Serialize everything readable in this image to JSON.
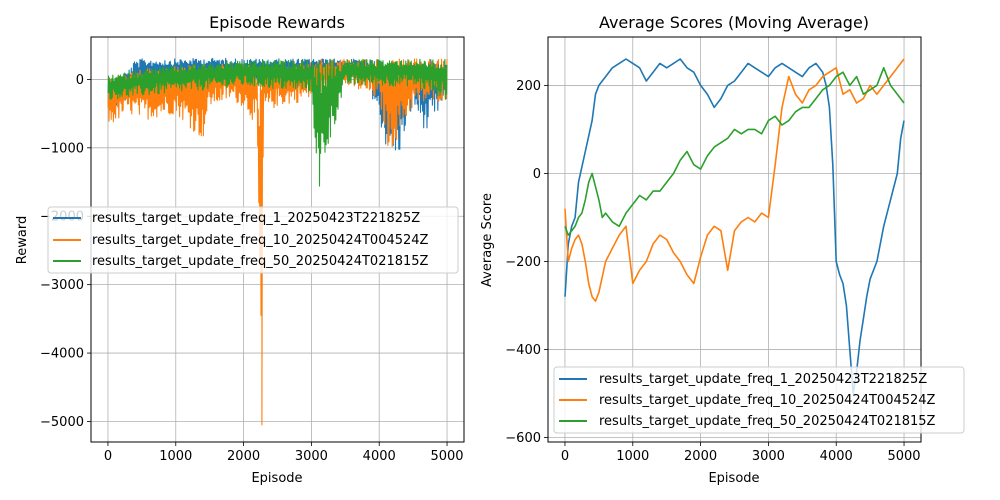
{
  "chart_data": [
    {
      "type": "line",
      "title": "Episode Rewards",
      "xlabel": "Episode",
      "ylabel": "Reward",
      "xlim": [
        -250,
        5250
      ],
      "ylim": [
        -5300,
        620
      ],
      "xticks": [
        0,
        1000,
        2000,
        3000,
        4000,
        5000
      ],
      "yticks": [
        0,
        -1000,
        -2000,
        -3000,
        -4000,
        -5000
      ],
      "xtick_labels": [
        "0",
        "1000",
        "2000",
        "3000",
        "4000",
        "5000"
      ],
      "ytick_labels": [
        "0",
        "−1000",
        "−2000",
        "−3000",
        "−4000",
        "−5000"
      ],
      "grid": true,
      "legend_position": "center-left",
      "series": [
        {
          "name": "results_target_update_freq_1_20250423T221825Z",
          "color": "#1f77b4",
          "x": [
            0,
            300,
            400,
            500,
            1000,
            1500,
            1800,
            2000,
            2500,
            3000,
            3500,
            3800,
            4000,
            4150,
            4300,
            4500,
            4700,
            5000
          ],
          "upper": [
            -100,
            150,
            280,
            300,
            300,
            310,
            310,
            300,
            300,
            300,
            300,
            290,
            280,
            200,
            250,
            280,
            290,
            300
          ],
          "lower": [
            -500,
            -300,
            -200,
            -100,
            -50,
            0,
            -20,
            -30,
            0,
            50,
            80,
            50,
            -600,
            -1200,
            -1100,
            -400,
            -800,
            -300
          ]
        },
        {
          "name": "results_target_update_freq_10_20250424T004524Z",
          "color": "#ff7f0e",
          "x": [
            0,
            300,
            500,
            1000,
            1400,
            1500,
            1800,
            2000,
            2200,
            2250,
            2300,
            2500,
            3000,
            3200,
            3500,
            4000,
            4150,
            4500,
            5000
          ],
          "upper": [
            0,
            100,
            150,
            200,
            220,
            200,
            250,
            230,
            200,
            150,
            200,
            250,
            280,
            300,
            300,
            300,
            300,
            300,
            300
          ],
          "lower": [
            -700,
            -500,
            -600,
            -500,
            -900,
            -400,
            -300,
            -400,
            -700,
            -5050,
            -500,
            -400,
            -300,
            -200,
            -100,
            -300,
            -1100,
            -400,
            -300
          ],
          "spike": {
            "x": 2270,
            "y": -5050
          }
        },
        {
          "name": "results_target_update_freq_50_20250424T021815Z",
          "color": "#2ca02c",
          "x": [
            0,
            500,
            1000,
            1500,
            2000,
            2500,
            3000,
            3100,
            3500,
            4000,
            4500,
            5000
          ],
          "upper": [
            50,
            150,
            200,
            250,
            270,
            280,
            280,
            280,
            290,
            290,
            300,
            300
          ],
          "lower": [
            -300,
            -250,
            -200,
            -150,
            -100,
            -150,
            -200,
            -1550,
            -100,
            -100,
            -100,
            -300
          ],
          "spike": {
            "x": 3120,
            "y": -1560
          }
        }
      ]
    },
    {
      "type": "line",
      "title": "Average Scores (Moving Average)",
      "xlabel": "Episode",
      "ylabel": "Average Score",
      "xlim": [
        -250,
        5250
      ],
      "ylim": [
        -610,
        310
      ],
      "xticks": [
        0,
        1000,
        2000,
        3000,
        4000,
        5000
      ],
      "yticks": [
        200,
        0,
        -200,
        -400,
        -600
      ],
      "xtick_labels": [
        "0",
        "1000",
        "2000",
        "3000",
        "4000",
        "5000"
      ],
      "ytick_labels": [
        "200",
        "0",
        "−200",
        "−400",
        "−600"
      ],
      "grid": true,
      "legend_position": "lower-right",
      "series": [
        {
          "name": "results_target_update_freq_1_20250423T221825Z",
          "color": "#1f77b4",
          "x": [
            0,
            50,
            100,
            150,
            200,
            300,
            400,
            450,
            500,
            600,
            700,
            800,
            900,
            1000,
            1100,
            1200,
            1300,
            1400,
            1500,
            1600,
            1700,
            1800,
            1900,
            2000,
            2100,
            2200,
            2300,
            2400,
            2500,
            2600,
            2700,
            2800,
            2900,
            3000,
            3100,
            3200,
            3300,
            3400,
            3500,
            3600,
            3700,
            3800,
            3850,
            3900,
            3950,
            4000,
            4050,
            4100,
            4150,
            4200,
            4250,
            4300,
            4350,
            4400,
            4450,
            4500,
            4600,
            4700,
            4800,
            4900,
            4950,
            5000
          ],
          "y": [
            -280,
            -160,
            -120,
            -100,
            -20,
            50,
            120,
            180,
            200,
            220,
            240,
            250,
            260,
            250,
            240,
            210,
            230,
            250,
            240,
            250,
            260,
            240,
            230,
            200,
            180,
            150,
            170,
            200,
            210,
            230,
            250,
            240,
            230,
            220,
            240,
            250,
            240,
            230,
            220,
            240,
            250,
            230,
            200,
            150,
            20,
            -200,
            -230,
            -250,
            -300,
            -400,
            -500,
            -450,
            -380,
            -330,
            -280,
            -240,
            -200,
            -120,
            -60,
            0,
            80,
            120
          ]
        },
        {
          "name": "results_target_update_freq_10_20250424T004524Z",
          "color": "#ff7f0e",
          "x": [
            0,
            50,
            100,
            150,
            200,
            250,
            300,
            350,
            400,
            450,
            500,
            600,
            700,
            800,
            900,
            1000,
            1100,
            1200,
            1300,
            1400,
            1500,
            1600,
            1700,
            1800,
            1900,
            2000,
            2100,
            2200,
            2300,
            2400,
            2500,
            2600,
            2700,
            2800,
            2900,
            3000,
            3100,
            3200,
            3300,
            3400,
            3500,
            3600,
            3700,
            3800,
            3900,
            4000,
            4100,
            4200,
            4300,
            4400,
            4500,
            4600,
            4700,
            4800,
            4900,
            5000
          ],
          "y": [
            -80,
            -200,
            -170,
            -150,
            -140,
            -160,
            -200,
            -250,
            -280,
            -290,
            -270,
            -200,
            -170,
            -140,
            -120,
            -250,
            -220,
            -200,
            -160,
            -140,
            -150,
            -180,
            -200,
            -230,
            -250,
            -190,
            -140,
            -120,
            -130,
            -220,
            -130,
            -110,
            -100,
            -110,
            -90,
            -100,
            20,
            150,
            220,
            180,
            160,
            190,
            200,
            220,
            230,
            240,
            180,
            190,
            160,
            170,
            200,
            180,
            200,
            220,
            240,
            260
          ]
        },
        {
          "name": "results_target_update_freq_50_20250424T021815Z",
          "color": "#2ca02c",
          "x": [
            0,
            50,
            100,
            150,
            200,
            250,
            300,
            350,
            400,
            450,
            500,
            550,
            600,
            700,
            800,
            900,
            1000,
            1100,
            1200,
            1300,
            1400,
            1500,
            1600,
            1700,
            1800,
            1900,
            2000,
            2100,
            2200,
            2300,
            2400,
            2500,
            2600,
            2700,
            2800,
            2900,
            3000,
            3100,
            3200,
            3300,
            3400,
            3500,
            3600,
            3700,
            3800,
            3900,
            4000,
            4100,
            4200,
            4300,
            4400,
            4500,
            4600,
            4700,
            4800,
            4900,
            5000
          ],
          "y": [
            -120,
            -140,
            -130,
            -120,
            -100,
            -90,
            -60,
            -20,
            0,
            -30,
            -60,
            -100,
            -90,
            -110,
            -120,
            -90,
            -70,
            -50,
            -60,
            -40,
            -40,
            -20,
            0,
            30,
            50,
            20,
            10,
            40,
            60,
            70,
            80,
            100,
            90,
            100,
            100,
            90,
            120,
            130,
            110,
            120,
            140,
            150,
            150,
            170,
            190,
            200,
            220,
            230,
            200,
            220,
            180,
            190,
            200,
            240,
            200,
            180,
            160
          ]
        }
      ]
    }
  ]
}
